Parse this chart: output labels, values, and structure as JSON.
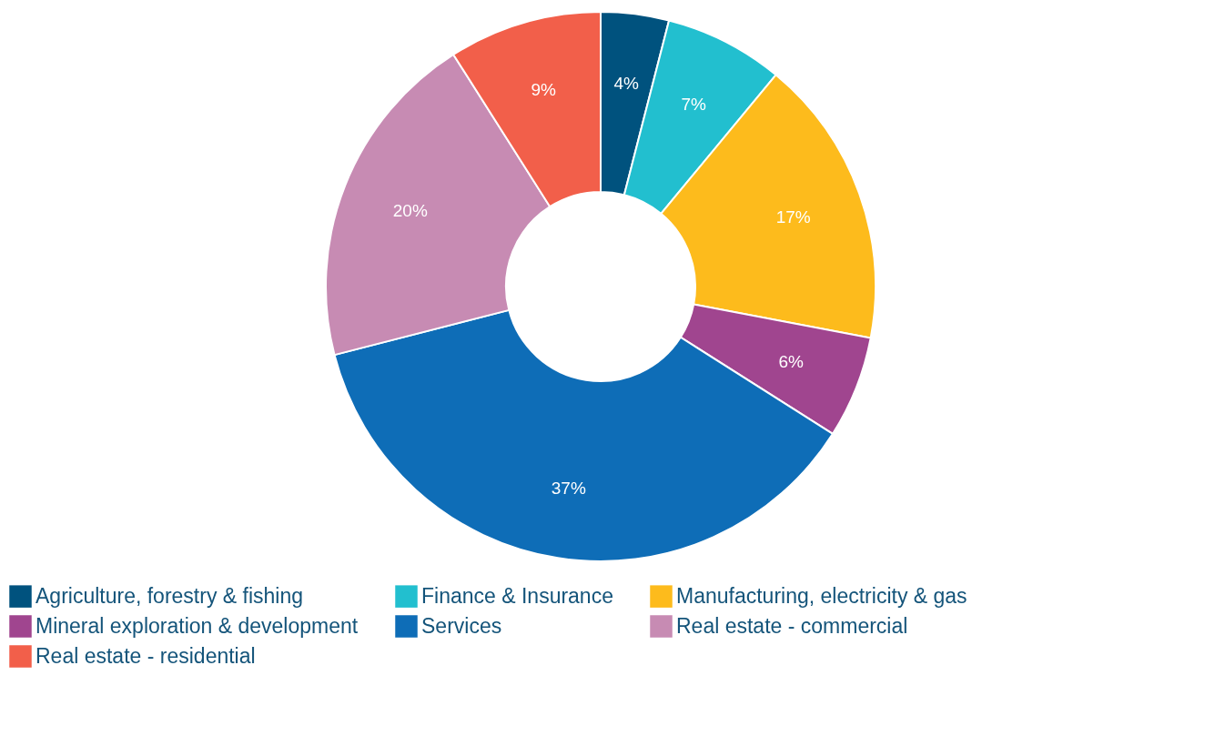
{
  "chart_data": {
    "type": "donut",
    "categories": [
      "Agriculture, forestry & fishing",
      "Finance & Insurance",
      "Manufacturing, electricity & gas",
      "Mineral exploration & development",
      "Services",
      "Real estate - commercial",
      "Real estate - residential"
    ],
    "values": [
      4,
      7,
      17,
      6,
      37,
      20,
      9
    ],
    "colors": [
      "#00527e",
      "#22bfcf",
      "#fdbb1c",
      "#a0458f",
      "#0e6db7",
      "#c78bb3",
      "#f25f4a"
    ],
    "value_labels": [
      "4%",
      "7%",
      "17%",
      "6%",
      "37%",
      "20%",
      "9%"
    ],
    "legend": "bottom"
  }
}
